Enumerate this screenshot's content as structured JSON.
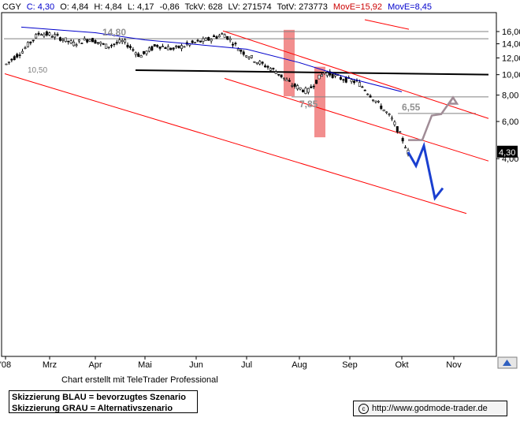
{
  "header": {
    "symbol": "CGY",
    "close": "C: 4,30",
    "open": "O: 4,84",
    "high": "H: 4,84",
    "low": "L: 4,17",
    "change": "-0,86",
    "tickv": "TckV: 628",
    "lv": "LV: 271574",
    "totv": "TotV: 273773",
    "move1": "MovE=15,92",
    "move2": "MovE=8,45"
  },
  "credit": "Chart erstellt mit TeleTrader Professional",
  "legend": {
    "blue": "Skizzierung BLAU = bevorzugtes Szenario",
    "grey": "Skizzierung GRAU = Alternativszenario"
  },
  "url": "http://www.godmode-trader.de",
  "colors": {
    "candles": "#000000",
    "ma_short": "#0000cc",
    "channel": "#ff0000",
    "support": "#000000",
    "level_lines": "#808080",
    "highlight": "#f28e8e",
    "blue_scenario": "#1a3fd0",
    "grey_scenario": "#a08c96",
    "move1": "#cc0000",
    "move2": "#0000cc"
  },
  "chart_data": {
    "type": "candlestick",
    "title": "",
    "x_ticks": [
      "'08",
      "Mrz",
      "Apr",
      "Mai",
      "Jun",
      "Jul",
      "Aug",
      "Sep",
      "Okt",
      "Nov"
    ],
    "y_axis": {
      "scale": "log",
      "ticks": [
        "16,00",
        "14,00",
        "12,00",
        "10,00",
        "8,00",
        "6,00",
        "4,00"
      ],
      "last_price_label": "4,30"
    },
    "annotations": [
      "14,80",
      "10,50",
      "7,85",
      "6,55"
    ],
    "price_path": {
      "date": [
        "'08",
        "'08",
        "'08",
        "Mrz",
        "Mrz",
        "Mrz",
        "Apr",
        "Apr",
        "Apr",
        "Mai",
        "Mai",
        "Jun",
        "Jun",
        "Jun",
        "Jul",
        "Jul",
        "Jul",
        "Aug",
        "Aug",
        "Aug",
        "Sep",
        "Sep",
        "Okt",
        "Okt",
        "Okt"
      ],
      "close": [
        11.2,
        13.0,
        15.8,
        15.2,
        14.0,
        14.8,
        13.6,
        14.4,
        12.2,
        13.8,
        13.2,
        14.0,
        14.6,
        15.6,
        13.0,
        11.5,
        10.5,
        9.0,
        8.3,
        10.3,
        9.6,
        9.2,
        7.6,
        6.2,
        4.3
      ]
    },
    "moving_average": {
      "date": [
        "'08",
        "Mrz",
        "Apr",
        "Mai",
        "Jun",
        "Jul",
        "Aug",
        "Sep",
        "Okt"
      ],
      "value": [
        16.8,
        16.4,
        15.8,
        14.6,
        13.9,
        13.2,
        11.4,
        9.6,
        8.3
      ]
    },
    "horizontal_levels": [
      16.0,
      14.8,
      7.85,
      6.55
    ],
    "support_line": {
      "from": 10.5,
      "to": 10.0
    },
    "scenario_blue": [
      4.3,
      3.7,
      4.6,
      2.6,
      2.9
    ],
    "scenario_grey": [
      4.9,
      4.9,
      6.4,
      6.5,
      7.8
    ],
    "grid": false,
    "legend_position": "bottom-left"
  }
}
